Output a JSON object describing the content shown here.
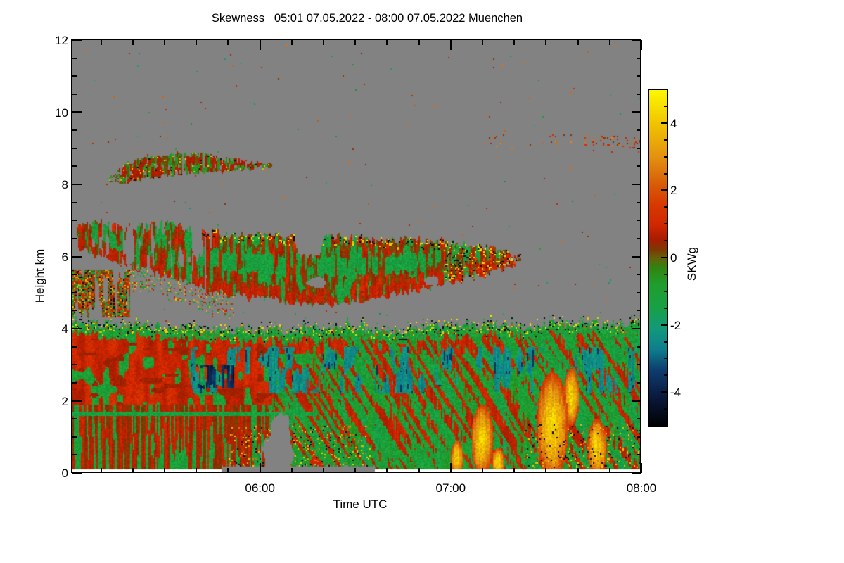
{
  "title": "Skewness   05:01 07.05.2022 - 08:00 07.05.2022 Muenchen",
  "chart_data": {
    "type": "heatmap",
    "variable": "Skewness",
    "time_start": "05:01 07.05.2022",
    "time_end": "08:00 07.05.2022",
    "station": "Muenchen",
    "xlabel": "Time UTC",
    "ylabel": "Height km",
    "x_range_minutes_after_0500": [
      1,
      180
    ],
    "x_ticks": [
      {
        "minute": 60,
        "label": "06:00"
      },
      {
        "minute": 120,
        "label": "07:00"
      },
      {
        "minute": 180,
        "label": "08:00"
      }
    ],
    "x_minor_step_min": 10,
    "y_range_km": [
      0,
      12
    ],
    "y_ticks": [
      {
        "km": 0,
        "label": "0"
      },
      {
        "km": 2,
        "label": "2"
      },
      {
        "km": 4,
        "label": "4"
      },
      {
        "km": 6,
        "label": "6"
      },
      {
        "km": 8,
        "label": "8"
      },
      {
        "km": 10,
        "label": "10"
      },
      {
        "km": 12,
        "label": "12"
      }
    ],
    "y_minor_step_km": 0.5,
    "no_data_color": "#828282",
    "colorbar": {
      "label": "SKWg",
      "range": [
        -5,
        5
      ],
      "major_ticks": [
        {
          "v": 4,
          "label": "4"
        },
        {
          "v": 2,
          "label": "2"
        },
        {
          "v": 0,
          "label": "0"
        },
        {
          "v": -2,
          "label": "-2"
        },
        {
          "v": -4,
          "label": "-4"
        }
      ],
      "minor_step": 0.5,
      "stops": [
        [
          5,
          "#fcf800"
        ],
        [
          4,
          "#f0c400"
        ],
        [
          3,
          "#e39110"
        ],
        [
          2.2,
          "#d85c08"
        ],
        [
          1.6,
          "#d63a00"
        ],
        [
          1.0,
          "#d02700"
        ],
        [
          0.55,
          "#a81c00"
        ],
        [
          0.25,
          "#7c3a02"
        ],
        [
          0,
          "#63610a"
        ],
        [
          -0.3,
          "#2f8512"
        ],
        [
          -0.8,
          "#1f9e2e"
        ],
        [
          -1.5,
          "#17a046"
        ],
        [
          -2.1,
          "#12997c"
        ],
        [
          -2.7,
          "#0e7e8d"
        ],
        [
          -3.3,
          "#0d3f70"
        ],
        [
          -4.1,
          "#0a1a3e"
        ],
        [
          -5,
          "#000000"
        ]
      ]
    },
    "regions": {
      "lower_mass": {
        "top_profile": [
          [
            1,
            4.12
          ],
          [
            30,
            4.05
          ],
          [
            55,
            3.98
          ],
          [
            62,
            3.92
          ],
          [
            75,
            3.98
          ],
          [
            90,
            4.02
          ],
          [
            105,
            3.95
          ],
          [
            118,
            4.05
          ],
          [
            132,
            4.1
          ],
          [
            145,
            4.05
          ],
          [
            158,
            4.15
          ],
          [
            170,
            4.1
          ],
          [
            180,
            4.2
          ]
        ],
        "white_strip_top_km": 0.085,
        "gray_strip": {
          "t": [
            48,
            96
          ],
          "h_top": 0.16
        },
        "gray_hole": [
          [
            65.5,
            0.55,
            5,
            0.5
          ],
          [
            66.5,
            1.15,
            3,
            0.55
          ]
        ],
        "green_line": {
          "t": [
            1,
            78
          ],
          "h": [
            1.59,
            1.71
          ]
        },
        "teal_band": {
          "t": [
            38,
            180
          ],
          "h": [
            2.2,
            3.5
          ]
        },
        "navy_patch": {
          "t": [
            40,
            52
          ],
          "h": [
            2.35,
            3.0
          ]
        },
        "red_band_right": {
          "t": [
            62,
            126
          ],
          "h": [
            3.3,
            3.95
          ]
        },
        "flames": [
          [
            130,
            0.9,
            3.5,
            1.0
          ],
          [
            152,
            1.3,
            5,
            1.5
          ],
          [
            158,
            2.1,
            2.5,
            0.8
          ],
          [
            166,
            0.7,
            3,
            0.8
          ],
          [
            122,
            0.4,
            2,
            0.5
          ],
          [
            135,
            0.3,
            2,
            0.4
          ]
        ],
        "speck_clusters": [
          {
            "t": [
              50,
              95
            ],
            "h": [
              0.12,
              1.3
            ]
          },
          {
            "t": [
              143,
              180
            ],
            "h": [
              0.12,
              1.35
            ]
          }
        ]
      },
      "left_wedge": {
        "t": [
          1,
          19
        ],
        "h": [
          4.3,
          5.65
        ]
      },
      "mid_cloud": {
        "t": [
          2.5,
          142
        ],
        "top_profile": [
          [
            3,
            6.9
          ],
          [
            10,
            6.95
          ],
          [
            16,
            6.8
          ],
          [
            24,
            6.85
          ],
          [
            32,
            6.9
          ],
          [
            44,
            6.65
          ],
          [
            58,
            6.6
          ],
          [
            72,
            6.55
          ],
          [
            80,
            6.55
          ],
          [
            95,
            6.5
          ],
          [
            110,
            6.45
          ],
          [
            120,
            6.4
          ],
          [
            128,
            6.3
          ],
          [
            136,
            6.15
          ],
          [
            142,
            6.0
          ]
        ],
        "bottom_profile": [
          [
            3,
            6.2
          ],
          [
            10,
            5.95
          ],
          [
            16,
            5.8
          ],
          [
            24,
            5.65
          ],
          [
            32,
            5.45
          ],
          [
            44,
            5.05
          ],
          [
            58,
            4.85
          ],
          [
            72,
            4.7
          ],
          [
            80,
            4.65
          ],
          [
            95,
            4.85
          ],
          [
            110,
            5.05
          ],
          [
            120,
            5.3
          ],
          [
            128,
            5.45
          ],
          [
            136,
            5.6
          ],
          [
            142,
            5.85
          ]
        ],
        "holes": [
          [
            75.5,
            6.5,
            5,
            0.5
          ],
          [
            78,
            5.28,
            3,
            0.15
          ],
          [
            114,
            5.33,
            2.5,
            0.13
          ],
          [
            19,
            6.3,
            1.5,
            0.6
          ],
          [
            40,
            6.45,
            1.5,
            0.55
          ]
        ],
        "gappy_until_t": 45
      },
      "upper_cloud": {
        "t": [
          12,
          64
        ],
        "top_profile": [
          [
            12,
            8.2
          ],
          [
            18,
            8.55
          ],
          [
            26,
            8.8
          ],
          [
            34,
            8.85
          ],
          [
            44,
            8.8
          ],
          [
            54,
            8.65
          ],
          [
            64,
            8.55
          ]
        ],
        "bottom_profile": [
          [
            12,
            7.95
          ],
          [
            18,
            8.05
          ],
          [
            26,
            8.2
          ],
          [
            34,
            8.3
          ],
          [
            44,
            8.35
          ],
          [
            54,
            8.4
          ],
          [
            64,
            8.5
          ]
        ]
      },
      "speckle_trail": {
        "t": [
          131,
          180
        ],
        "h": [
          8.88,
          9.4
        ],
        "dense_from_t": 162
      },
      "ambient_speckle_density": 0.002
    }
  }
}
